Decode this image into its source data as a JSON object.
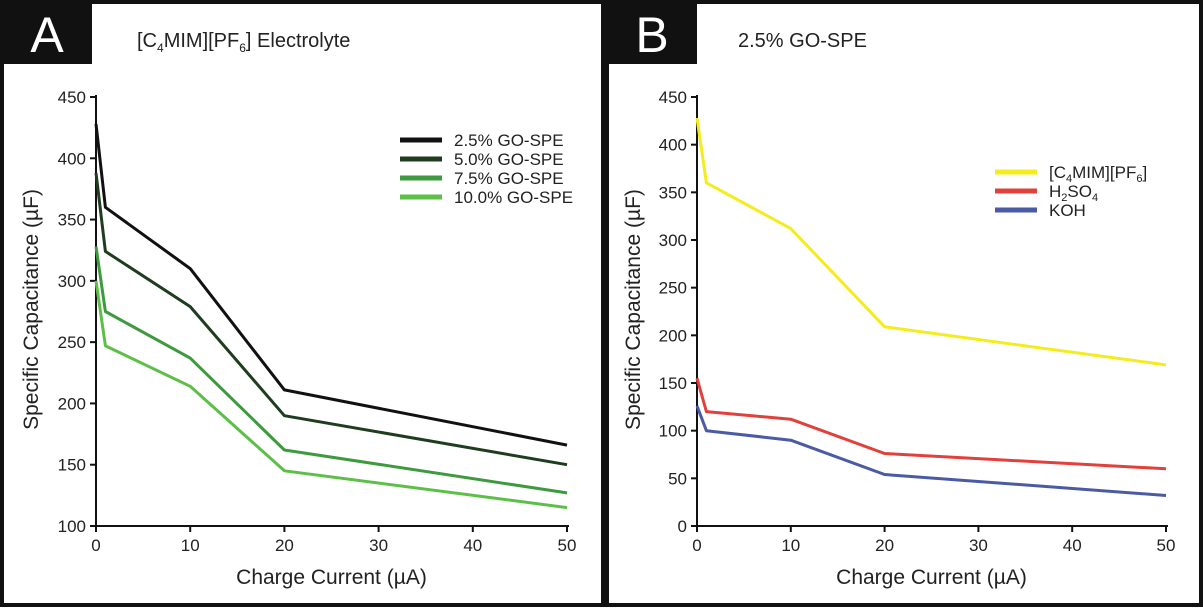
{
  "chart_data": [
    {
      "type": "line",
      "panel": "A",
      "title": {
        "pre": "[C",
        "s1": "4",
        "mid": "MIM][PF",
        "s2": "6",
        "post": "] Electrolyte"
      },
      "xlabel": "Charge Current (µA)",
      "ylabel": "Specific Capacitance (µF)",
      "xlim": [
        0,
        50
      ],
      "ylim": [
        100,
        450
      ],
      "xticks": [
        0,
        10,
        20,
        30,
        40,
        50
      ],
      "yticks": [
        100,
        150,
        200,
        250,
        300,
        350,
        400,
        450
      ],
      "grid": false,
      "legend_position": "top-right",
      "series": [
        {
          "name": "2.5% GO-SPE",
          "color": "#111111",
          "x": [
            0,
            1,
            10,
            20,
            50
          ],
          "y": [
            428,
            360,
            310,
            211,
            166
          ]
        },
        {
          "name": "5.0% GO-SPE",
          "color": "#1e3d1e",
          "x": [
            0,
            1,
            10,
            20,
            50
          ],
          "y": [
            388,
            324,
            279,
            190,
            150
          ]
        },
        {
          "name": "7.5% GO-SPE",
          "color": "#3e9a3e",
          "x": [
            0,
            1,
            10,
            20,
            50
          ],
          "y": [
            328,
            275,
            237,
            162,
            127
          ]
        },
        {
          "name": "10.0% GO-SPE",
          "color": "#5cbf47",
          "x": [
            0,
            1,
            10,
            20,
            50
          ],
          "y": [
            300,
            247,
            214,
            145,
            115
          ]
        }
      ]
    },
    {
      "type": "line",
      "panel": "B",
      "title": {
        "text": "2.5% GO-SPE"
      },
      "xlabel": "Charge Current (µA)",
      "ylabel": "Specific Capacitance (µF)",
      "xlim": [
        0,
        50
      ],
      "ylim": [
        0,
        450
      ],
      "xticks": [
        0,
        10,
        20,
        30,
        40,
        50
      ],
      "yticks": [
        0,
        50,
        100,
        150,
        200,
        250,
        300,
        350,
        400,
        450
      ],
      "grid": false,
      "legend_position": "top-right",
      "series": [
        {
          "name": {
            "pre": "[C",
            "s1": "4",
            "mid": "MIM][PF",
            "s2": "6",
            "post": "]"
          },
          "color": "#f4ec1c",
          "x": [
            0,
            1,
            10,
            20,
            50
          ],
          "y": [
            428,
            360,
            312,
            209,
            169
          ]
        },
        {
          "name": {
            "pre": "H",
            "s1": "2",
            "mid": "SO",
            "s2": "4",
            "post": ""
          },
          "color": "#e2403b",
          "x": [
            0,
            1,
            10,
            20,
            50
          ],
          "y": [
            155,
            120,
            112,
            76,
            60
          ]
        },
        {
          "name": {
            "pre": "KOH",
            "s1": "",
            "mid": "",
            "s2": "",
            "post": ""
          },
          "color": "#4a5aa5",
          "x": [
            0,
            1,
            10,
            20,
            50
          ],
          "y": [
            126,
            100,
            90,
            54,
            32
          ]
        }
      ]
    }
  ]
}
